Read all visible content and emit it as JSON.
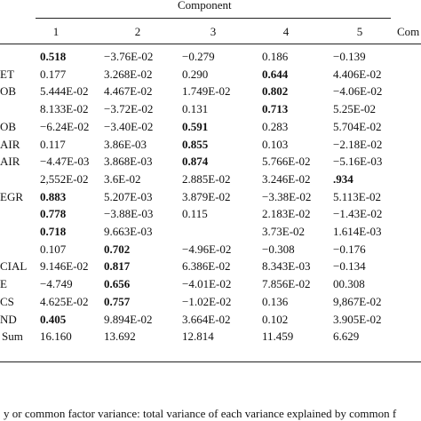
{
  "table": {
    "group_header": "Component",
    "columns": [
      "1",
      "2",
      "3",
      "4",
      "5"
    ],
    "extra_header": "Com",
    "rows": [
      {
        "label": null,
        "cells": [
          "0.518",
          "−3.76E-02",
          "−0.279",
          "0.186",
          "−0.139"
        ],
        "bold": 0
      },
      {
        "label": "ET",
        "cells": [
          "0.177",
          "3.268E-02",
          "0.290",
          "0.644",
          "4.406E-02"
        ],
        "bold": 3
      },
      {
        "label": "OB",
        "cells": [
          "5.444E-02",
          "4.467E-02",
          "1.749E-02",
          "0.802",
          "−4.06E-02"
        ],
        "bold": 3
      },
      {
        "label": null,
        "cells": [
          "8.133E-02",
          "−3.72E-02",
          "0.131",
          "0.713",
          "5.25E-02"
        ],
        "bold": 3
      },
      {
        "label": "OB",
        "cells": [
          "−6.24E-02",
          "−3.40E-02",
          "0.591",
          "0.283",
          "5.704E-02"
        ],
        "bold": 2
      },
      {
        "label": "AIR",
        "cells": [
          "0.117",
          "3.86E-03",
          "0.855",
          "0.103",
          "−2.18E-02"
        ],
        "bold": 2
      },
      {
        "label": "AIR",
        "cells": [
          "−4.47E-03",
          "3.868E-03",
          "0.874",
          "5.766E-02",
          "−5.16E-03"
        ],
        "bold": 2
      },
      {
        "label": null,
        "cells": [
          "2,552E-02",
          "3.6E-02",
          "2.885E-02",
          "3.246E-02",
          ".934"
        ],
        "bold": 4
      },
      {
        "label": "EGR",
        "cells": [
          "0.883",
          "5.207E-03",
          "3.879E-02",
          "−3.38E-02",
          "5.113E-02"
        ],
        "bold": 0
      },
      {
        "label": null,
        "cells": [
          "0.778",
          "−3.88E-03",
          "0.115",
          "2.183E-02",
          "−1.43E-02"
        ],
        "bold": 0
      },
      {
        "label": null,
        "cells": [
          "0.718",
          "9.663E-03",
          null,
          "3.73E-02",
          "1.614E-03"
        ],
        "bold": 0
      },
      {
        "label": null,
        "cells": [
          "0.107",
          "0.702",
          "−4.96E-02",
          "−0.308",
          "−0.176"
        ],
        "bold": 1
      },
      {
        "label": "CIAL",
        "cells": [
          "9.146E-02",
          "0.817",
          "6.386E-02",
          "8.343E-03",
          "−0.134"
        ],
        "bold": 1
      },
      {
        "label": "E",
        "cells": [
          "−4.749",
          "0.656",
          "−4.01E-02",
          "7.856E-02",
          "00.308"
        ],
        "bold": 1
      },
      {
        "label": "CS",
        "cells": [
          "4.625E-02",
          "0.757",
          "−1.02E-02",
          "0.136",
          "9,867E-02"
        ],
        "bold": 1
      },
      {
        "label": "ND",
        "cells": [
          "0.405",
          "9.894E-02",
          "3.664E-02",
          "0.102",
          "3.905E-02"
        ],
        "bold": 0
      },
      {
        "label": "Sum",
        "cells": [
          "16.160",
          "13.692",
          "12.814",
          "11.459",
          "6.629"
        ],
        "bold": null
      }
    ],
    "footnote": "y or common factor variance: total variance of each variance explained by common f"
  }
}
